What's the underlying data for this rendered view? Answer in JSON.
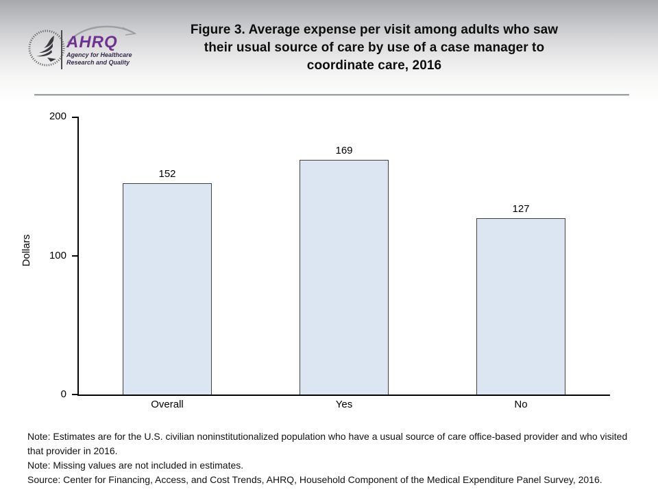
{
  "header": {
    "ahrq": {
      "word": "AHRQ",
      "tagline1": "Agency for Healthcare",
      "tagline2": "Research and Quality"
    },
    "title_lines": [
      "Figure 3. Average expense per visit among adults who saw",
      "their usual source of care by use of a case manager to",
      "coordinate care, 2016"
    ]
  },
  "chart_data": {
    "type": "bar",
    "title": "Figure 3. Average expense per visit among adults who saw their usual source of care by use of a case manager to coordinate care, 2016",
    "categories": [
      "Overall",
      "Yes",
      "No"
    ],
    "values": [
      152,
      169,
      127
    ],
    "value_labels": [
      "152",
      "169",
      "127"
    ],
    "xlabel": "",
    "ylabel": "Dollars",
    "ylim": [
      0,
      200
    ],
    "yticks": [
      0,
      100,
      200
    ],
    "grid": false,
    "legend": false,
    "bar_fill": "#dce6f2",
    "bar_border": "#404040"
  },
  "notes": [
    "Note: Estimates are for the U.S. civilian noninstitutionalized population who have a usual source of care office-based provider and who visited that provider in 2016.",
    "Note: Missing values are not included in estimates.",
    "Source: Center for Financing, Access, and Cost Trends, AHRQ, Household Component of the Medical Expenditure Panel Survey, 2016."
  ],
  "colors": {
    "ahrq_purple": "#6e3390",
    "header_gradient_top": "#a7a8ac",
    "divider_gray": "#9aa0a2",
    "bar_fill": "#dce6f2",
    "bar_border": "#404040",
    "axis_black": "#000000"
  }
}
